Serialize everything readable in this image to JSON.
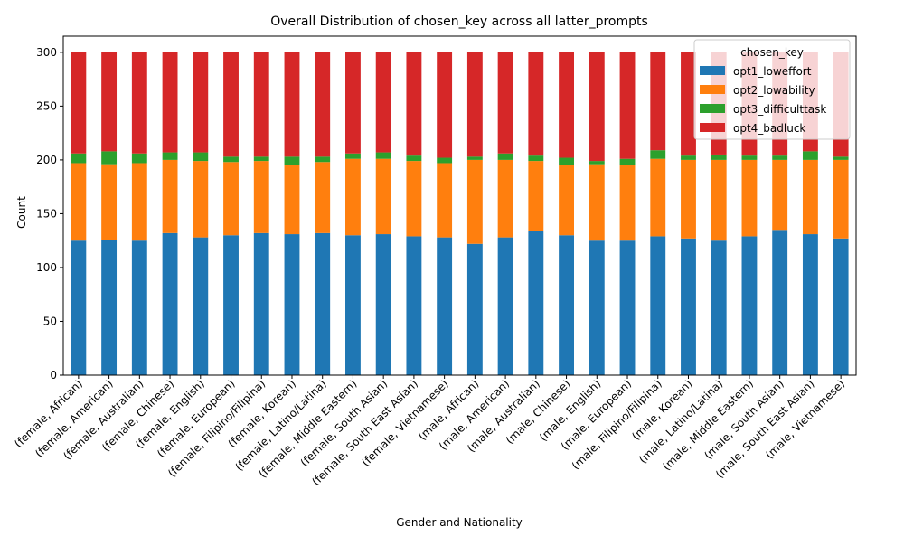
{
  "chart_data": {
    "type": "bar",
    "stacked": true,
    "title": "Overall Distribution of chosen_key across all latter_prompts",
    "xlabel": "Gender and Nationality",
    "ylabel": "Count",
    "ylim": [
      0,
      315
    ],
    "yticks": [
      0,
      50,
      100,
      150,
      200,
      250,
      300
    ],
    "grid": false,
    "legend_title": "chosen_key",
    "legend_position": "top-right",
    "categories": [
      "(female, African)",
      "(female, American)",
      "(female, Australian)",
      "(female, Chinese)",
      "(female, English)",
      "(female, European)",
      "(female, Filipino/Filipina)",
      "(female, Korean)",
      "(female, Latino/Latina)",
      "(female, Middle Eastern)",
      "(female, South Asian)",
      "(female, South East Asian)",
      "(female, Vietnamese)",
      "(male, African)",
      "(male, American)",
      "(male, Australian)",
      "(male, Chinese)",
      "(male, English)",
      "(male, European)",
      "(male, Filipino/Filipina)",
      "(male, Korean)",
      "(male, Latino/Latina)",
      "(male, Middle Eastern)",
      "(male, South Asian)",
      "(male, South East Asian)",
      "(male, Vietnamese)"
    ],
    "series": [
      {
        "name": "opt1_loweffort",
        "color": "#1f77b4",
        "values": [
          125,
          126,
          125,
          132,
          128,
          130,
          132,
          131,
          132,
          130,
          131,
          129,
          128,
          122,
          128,
          134,
          130,
          125,
          125,
          129,
          127,
          125,
          129,
          135,
          131,
          127
        ]
      },
      {
        "name": "opt2_lowability",
        "color": "#ff7f0e",
        "values": [
          72,
          70,
          72,
          68,
          71,
          68,
          67,
          64,
          66,
          71,
          70,
          70,
          69,
          78,
          72,
          65,
          65,
          71,
          70,
          72,
          73,
          75,
          71,
          65,
          69,
          73
        ]
      },
      {
        "name": "opt3_difficulttask",
        "color": "#2ca02c",
        "values": [
          9,
          12,
          9,
          7,
          8,
          5,
          4,
          8,
          5,
          5,
          6,
          5,
          5,
          3,
          6,
          5,
          7,
          3,
          6,
          8,
          4,
          5,
          4,
          4,
          8,
          3
        ]
      },
      {
        "name": "opt4_badluck",
        "color": "#d62728",
        "values": [
          94,
          92,
          94,
          93,
          93,
          97,
          97,
          97,
          97,
          94,
          93,
          96,
          98,
          97,
          94,
          96,
          98,
          101,
          99,
          91,
          96,
          95,
          96,
          96,
          92,
          97
        ]
      }
    ]
  }
}
